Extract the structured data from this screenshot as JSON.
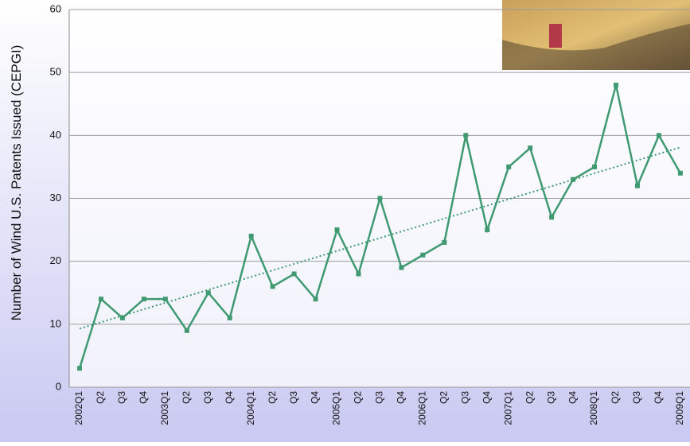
{
  "chart_data": {
    "type": "line",
    "y_label": "Number of Wind U.S. Patents Issued (CEPGI)",
    "categories": [
      "2002Q1",
      "Q2",
      "Q3",
      "Q4",
      "2003Q1",
      "Q2",
      "Q3",
      "Q4",
      "2004Q1",
      "Q2",
      "Q3",
      "Q4",
      "2005Q1",
      "Q2",
      "Q3",
      "Q4",
      "2006Q1",
      "Q2",
      "Q3",
      "Q4",
      "2007Q1",
      "Q2",
      "Q3",
      "Q4",
      "2008Q1",
      "Q2",
      "Q3",
      "Q4",
      "2009Q1"
    ],
    "series": [
      {
        "color": "#3f9a72",
        "values": [
          3,
          14,
          11,
          14,
          14,
          9,
          15,
          11,
          24,
          16,
          18,
          14,
          25,
          18,
          30,
          19,
          21,
          23,
          40,
          25,
          35,
          38,
          27,
          33,
          35,
          48,
          32,
          40,
          34
        ]
      }
    ],
    "trendline": {
      "color": "#3f9a72",
      "values": [
        9.3,
        38.1
      ]
    },
    "ylim": [
      0,
      60
    ],
    "yticks": [
      0,
      10,
      20,
      30,
      40,
      50,
      60
    ],
    "grid": true
  }
}
